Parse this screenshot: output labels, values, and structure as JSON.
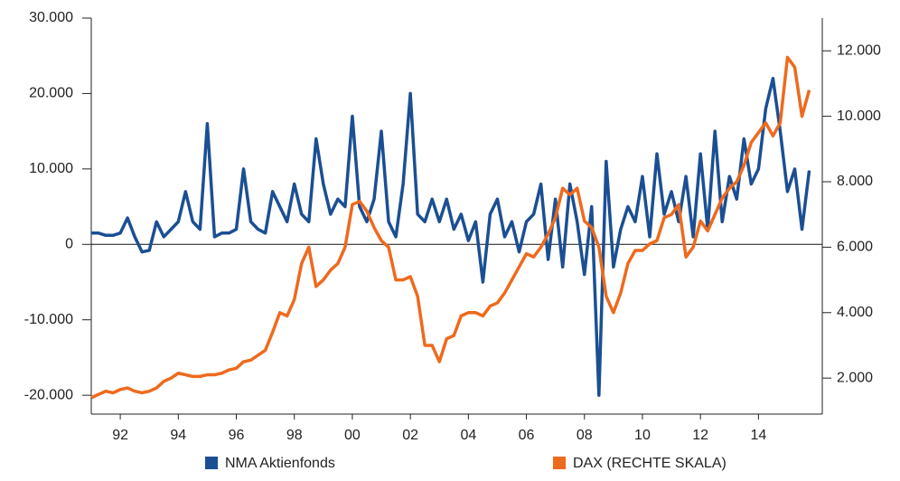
{
  "chart_data": {
    "type": "line",
    "x": [
      1991,
      1991.25,
      1991.5,
      1991.75,
      1992,
      1992.25,
      1992.5,
      1992.75,
      1993,
      1993.25,
      1993.5,
      1993.75,
      1994,
      1994.25,
      1994.5,
      1994.75,
      1995,
      1995.25,
      1995.5,
      1995.75,
      1996,
      1996.25,
      1996.5,
      1996.75,
      1997,
      1997.25,
      1997.5,
      1997.75,
      1998,
      1998.25,
      1998.5,
      1998.75,
      1999,
      1999.25,
      1999.5,
      1999.75,
      2000,
      2000.25,
      2000.5,
      2000.75,
      2001,
      2001.25,
      2001.5,
      2001.75,
      2002,
      2002.25,
      2002.5,
      2002.75,
      2003,
      2003.25,
      2003.5,
      2003.75,
      2004,
      2004.25,
      2004.5,
      2004.75,
      2005,
      2005.25,
      2005.5,
      2005.75,
      2006,
      2006.25,
      2006.5,
      2006.75,
      2007,
      2007.25,
      2007.5,
      2007.75,
      2008,
      2008.25,
      2008.5,
      2008.75,
      2009,
      2009.25,
      2009.5,
      2009.75,
      2010,
      2010.25,
      2010.5,
      2010.75,
      2011,
      2011.25,
      2011.5,
      2011.75,
      2012,
      2012.25,
      2012.5,
      2012.75,
      2013,
      2013.25,
      2013.5,
      2013.75,
      2014,
      2014.25,
      2014.5,
      2014.75,
      2015,
      2015.25,
      2015.5,
      2015.75
    ],
    "xlim": [
      1991,
      2016.2
    ],
    "xticks": [
      {
        "value": 1992,
        "label": "92"
      },
      {
        "value": 1994,
        "label": "94"
      },
      {
        "value": 1996,
        "label": "96"
      },
      {
        "value": 1998,
        "label": "98"
      },
      {
        "value": 2000,
        "label": "00"
      },
      {
        "value": 2002,
        "label": "02"
      },
      {
        "value": 2004,
        "label": "04"
      },
      {
        "value": 2006,
        "label": "06"
      },
      {
        "value": 2008,
        "label": "08"
      },
      {
        "value": 2010,
        "label": "10"
      },
      {
        "value": 2012,
        "label": "12"
      },
      {
        "value": 2014,
        "label": "14"
      }
    ],
    "ylim": [
      -22500,
      30000
    ],
    "yticks": [
      {
        "value": 30000,
        "label": "30.000"
      },
      {
        "value": 20000,
        "label": "20.000"
      },
      {
        "value": 10000,
        "label": "10.000"
      },
      0,
      {
        "value": -10000,
        "label": "-10.000"
      },
      {
        "value": -20000,
        "label": "-20.000"
      }
    ],
    "y2lim": [
      900,
      13000
    ],
    "y2ticks": [
      {
        "value": 12000,
        "label": "12.000"
      },
      {
        "value": 10000,
        "label": "10.000"
      },
      {
        "value": 8000,
        "label": "8.000"
      },
      {
        "value": 6000,
        "label": "6.000"
      },
      {
        "value": 4000,
        "label": "4.000"
      },
      {
        "value": 2000,
        "label": "2.000"
      }
    ],
    "series": [
      {
        "name": "NMA Aktienfonds",
        "color": "#1b4f93",
        "values": [
          1500,
          1500,
          1200,
          1200,
          1500,
          3500,
          1000,
          -1000,
          -800,
          3000,
          1000,
          2000,
          3000,
          7000,
          3000,
          2000,
          16000,
          1000,
          1500,
          1500,
          2000,
          10000,
          3000,
          2000,
          1500,
          7000,
          5000,
          3000,
          8000,
          4000,
          3000,
          14000,
          8000,
          4000,
          6000,
          5000,
          17000,
          5000,
          3000,
          6000,
          15000,
          3000,
          1000,
          8000,
          20000,
          4000,
          3000,
          6000,
          3000,
          6000,
          2000,
          4000,
          500,
          3000,
          -5000,
          4000,
          6000,
          1000,
          3000,
          -1000,
          3000,
          4000,
          8000,
          -2000,
          6000,
          -3000,
          8000,
          3000,
          -4000,
          5000,
          -20000,
          11000,
          -3000,
          2000,
          5000,
          3000,
          9000,
          1000,
          12000,
          4000,
          7000,
          3000,
          9000,
          1000,
          12000,
          2000,
          15000,
          3000,
          9000,
          6000,
          14000,
          8000,
          10000,
          18000,
          22000,
          15000,
          7000,
          10000,
          2000,
          9800
        ]
      },
      {
        "name": "DAX (RECHTE SKALA)",
        "color": "#ee6a1d",
        "axis": "y2",
        "values": [
          1400,
          1500,
          1600,
          1550,
          1650,
          1700,
          1600,
          1550,
          1600,
          1700,
          1900,
          2000,
          2150,
          2100,
          2050,
          2050,
          2100,
          2100,
          2150,
          2250,
          2300,
          2500,
          2550,
          2700,
          2850,
          3400,
          4000,
          3900,
          4400,
          5500,
          6000,
          4800,
          5000,
          5300,
          5500,
          6000,
          7300,
          7400,
          7100,
          6600,
          6200,
          6000,
          5000,
          5000,
          5100,
          4500,
          3000,
          3000,
          2500,
          3200,
          3300,
          3900,
          4000,
          4000,
          3900,
          4200,
          4300,
          4600,
          5000,
          5400,
          5800,
          5700,
          6000,
          6400,
          6900,
          7800,
          7600,
          7800,
          6800,
          6600,
          6000,
          4500,
          4000,
          4600,
          5500,
          5900,
          5900,
          6100,
          6200,
          6900,
          7000,
          7300,
          5700,
          6000,
          6800,
          6500,
          7000,
          7500,
          7800,
          8000,
          8500,
          9200,
          9500,
          9800,
          9400,
          9800,
          11800,
          11500,
          10000,
          10800
        ]
      }
    ]
  }
}
